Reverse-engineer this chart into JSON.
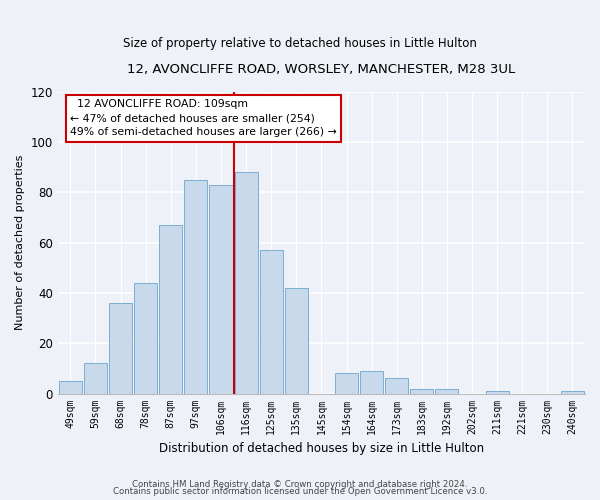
{
  "title": "12, AVONCLIFFE ROAD, WORSLEY, MANCHESTER, M28 3UL",
  "subtitle": "Size of property relative to detached houses in Little Hulton",
  "xlabel": "Distribution of detached houses by size in Little Hulton",
  "ylabel": "Number of detached properties",
  "footnote1": "Contains HM Land Registry data © Crown copyright and database right 2024.",
  "footnote2": "Contains public sector information licensed under the Open Government Licence v3.0.",
  "bar_labels": [
    "49sqm",
    "59sqm",
    "68sqm",
    "78sqm",
    "87sqm",
    "97sqm",
    "106sqm",
    "116sqm",
    "125sqm",
    "135sqm",
    "145sqm",
    "154sqm",
    "164sqm",
    "173sqm",
    "183sqm",
    "192sqm",
    "202sqm",
    "211sqm",
    "221sqm",
    "230sqm",
    "240sqm"
  ],
  "bar_values": [
    5,
    12,
    36,
    44,
    67,
    85,
    83,
    88,
    57,
    42,
    0,
    8,
    9,
    6,
    2,
    2,
    0,
    1,
    0,
    0,
    1
  ],
  "bar_color": "#c8d9ec",
  "bar_edge_color": "#7aaed0",
  "ylim": [
    0,
    120
  ],
  "yticks": [
    0,
    20,
    40,
    60,
    80,
    100,
    120
  ],
  "vline_x": 6.5,
  "vline_color": "#cc0000",
  "annotation_title": "12 AVONCLIFFE ROAD: 109sqm",
  "annotation_line1": "← 47% of detached houses are smaller (254)",
  "annotation_line2": "49% of semi-detached houses are larger (266) →",
  "annotation_box_color": "#ffffff",
  "annotation_box_edge": "#cc0000",
  "background_color": "#eef2f8",
  "title_fontsize": 9.5,
  "subtitle_fontsize": 8.5
}
